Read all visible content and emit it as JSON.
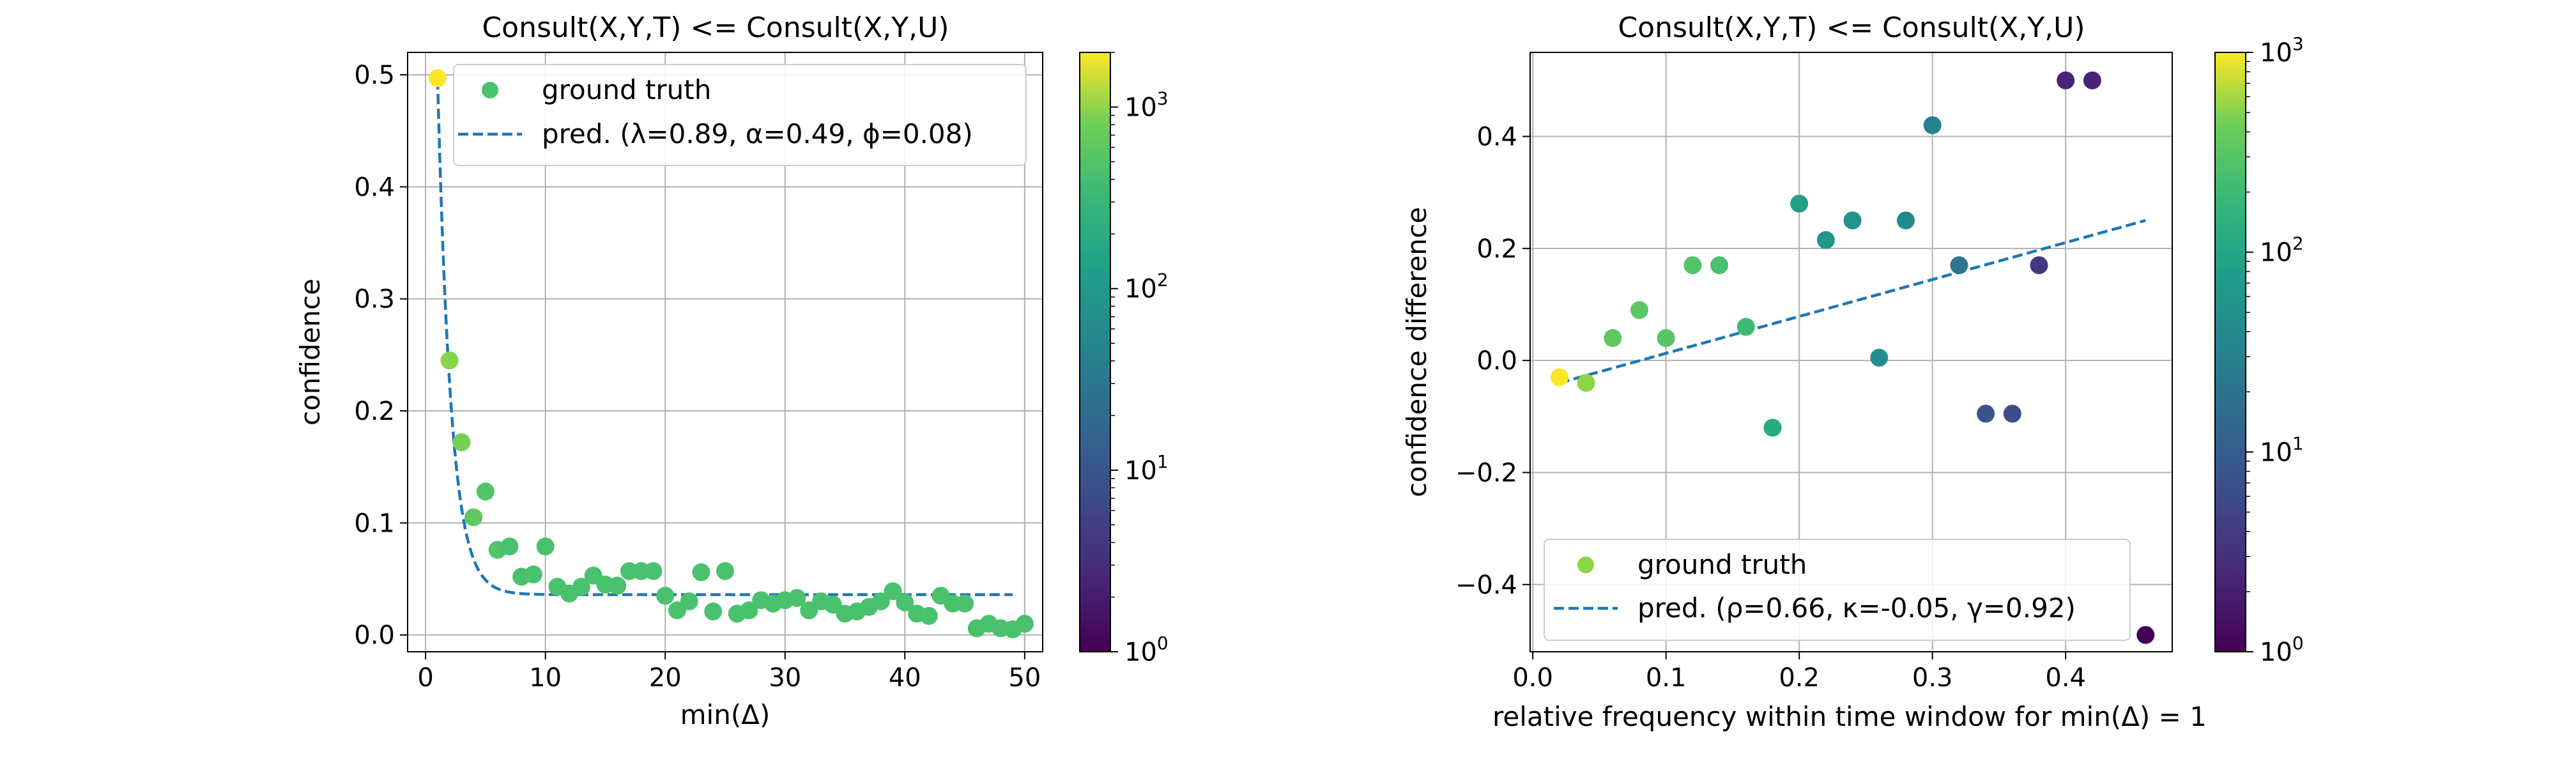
{
  "chart_data": [
    {
      "type": "scatter",
      "title": "Consult(X,Y,T) <=  Consult(X,Y,U)",
      "xlabel": "min(Δ)",
      "ylabel": "confidence",
      "xlim": [
        -1.5,
        51.5
      ],
      "ylim": [
        -0.015,
        0.52
      ],
      "xticks": [
        0,
        10,
        20,
        30,
        40,
        50
      ],
      "xtick_labels": [
        "0",
        "10",
        "20",
        "30",
        "40",
        "50"
      ],
      "yticks": [
        0.0,
        0.1,
        0.2,
        0.3,
        0.4,
        0.5
      ],
      "ytick_labels": [
        "0.0",
        "0.1",
        "0.2",
        "0.3",
        "0.4",
        "0.5"
      ],
      "grid": true,
      "legend_position": "top-right",
      "legend": [
        "ground truth",
        "pred. (λ=0.89, α=0.49, ϕ=0.08)"
      ],
      "series": [
        {
          "name": "ground truth",
          "kind": "scatter",
          "points": [
            {
              "x": 1,
              "y": 0.497,
              "c": 2000
            },
            {
              "x": 2,
              "y": 0.245,
              "c": 500
            },
            {
              "x": 3,
              "y": 0.172,
              "c": 400
            },
            {
              "x": 4,
              "y": 0.105,
              "c": 300
            },
            {
              "x": 5,
              "y": 0.128,
              "c": 250
            },
            {
              "x": 6,
              "y": 0.076,
              "c": 250
            },
            {
              "x": 7,
              "y": 0.079,
              "c": 220
            },
            {
              "x": 8,
              "y": 0.052,
              "c": 220
            },
            {
              "x": 9,
              "y": 0.054,
              "c": 220
            },
            {
              "x": 10,
              "y": 0.079,
              "c": 220
            },
            {
              "x": 11,
              "y": 0.043,
              "c": 220
            },
            {
              "x": 12,
              "y": 0.037,
              "c": 220
            },
            {
              "x": 13,
              "y": 0.043,
              "c": 220
            },
            {
              "x": 14,
              "y": 0.053,
              "c": 220
            },
            {
              "x": 15,
              "y": 0.045,
              "c": 220
            },
            {
              "x": 16,
              "y": 0.044,
              "c": 220
            },
            {
              "x": 17,
              "y": 0.057,
              "c": 220
            },
            {
              "x": 18,
              "y": 0.057,
              "c": 220
            },
            {
              "x": 19,
              "y": 0.057,
              "c": 220
            },
            {
              "x": 20,
              "y": 0.035,
              "c": 220
            },
            {
              "x": 21,
              "y": 0.022,
              "c": 220
            },
            {
              "x": 22,
              "y": 0.03,
              "c": 220
            },
            {
              "x": 23,
              "y": 0.056,
              "c": 220
            },
            {
              "x": 24,
              "y": 0.021,
              "c": 220
            },
            {
              "x": 25,
              "y": 0.057,
              "c": 220
            },
            {
              "x": 26,
              "y": 0.019,
              "c": 220
            },
            {
              "x": 27,
              "y": 0.022,
              "c": 220
            },
            {
              "x": 28,
              "y": 0.031,
              "c": 220
            },
            {
              "x": 29,
              "y": 0.028,
              "c": 220
            },
            {
              "x": 30,
              "y": 0.031,
              "c": 220
            },
            {
              "x": 31,
              "y": 0.033,
              "c": 220
            },
            {
              "x": 32,
              "y": 0.022,
              "c": 220
            },
            {
              "x": 33,
              "y": 0.03,
              "c": 220
            },
            {
              "x": 34,
              "y": 0.027,
              "c": 220
            },
            {
              "x": 35,
              "y": 0.019,
              "c": 220
            },
            {
              "x": 36,
              "y": 0.021,
              "c": 220
            },
            {
              "x": 37,
              "y": 0.025,
              "c": 220
            },
            {
              "x": 38,
              "y": 0.03,
              "c": 220
            },
            {
              "x": 39,
              "y": 0.039,
              "c": 220
            },
            {
              "x": 40,
              "y": 0.029,
              "c": 220
            },
            {
              "x": 41,
              "y": 0.019,
              "c": 220
            },
            {
              "x": 42,
              "y": 0.017,
              "c": 220
            },
            {
              "x": 43,
              "y": 0.035,
              "c": 220
            },
            {
              "x": 44,
              "y": 0.028,
              "c": 220
            },
            {
              "x": 45,
              "y": 0.028,
              "c": 220
            },
            {
              "x": 46,
              "y": 0.006,
              "c": 220
            },
            {
              "x": 47,
              "y": 0.01,
              "c": 220
            },
            {
              "x": 48,
              "y": 0.006,
              "c": 220
            },
            {
              "x": 49,
              "y": 0.005,
              "c": 220
            },
            {
              "x": 50,
              "y": 0.01,
              "c": 220
            }
          ]
        },
        {
          "name": "pred. (λ=0.89, α=0.49, ϕ=0.08)",
          "kind": "dashed-line",
          "model": {
            "a": 0.46,
            "rate": 0.89,
            "floor": 0.036
          },
          "x_range": [
            1,
            49
          ]
        }
      ],
      "colorbar": {
        "scale": "log",
        "min": 1,
        "max": 2000,
        "ticks": [
          1,
          10,
          100,
          1000
        ],
        "tick_bases": [
          "10",
          "10",
          "10",
          "10"
        ],
        "tick_exps": [
          "0",
          "1",
          "2",
          "3"
        ]
      }
    },
    {
      "type": "scatter",
      "title": "Consult(X,Y,T) <=  Consult(X,Y,U)",
      "xlabel": "relative frequency within time window for min(Δ) = 1",
      "ylabel": "confidence difference",
      "xlim": [
        -0.002,
        0.48
      ],
      "ylim": [
        -0.52,
        0.55
      ],
      "xticks": [
        0.0,
        0.1,
        0.2,
        0.3,
        0.4
      ],
      "xtick_labels": [
        "0.0",
        "0.1",
        "0.2",
        "0.3",
        "0.4"
      ],
      "yticks": [
        -0.4,
        -0.2,
        0.0,
        0.2,
        0.4
      ],
      "ytick_labels": [
        "−0.4",
        "−0.2",
        "0.0",
        "0.2",
        "0.4"
      ],
      "grid": true,
      "legend_position": "bottom-left",
      "legend": [
        "ground truth",
        "pred. (ρ=0.66, κ=-0.05, γ=0.92)"
      ],
      "series": [
        {
          "name": "ground truth",
          "kind": "scatter",
          "points": [
            {
              "x": 0.02,
              "y": -0.03,
              "c": 1000
            },
            {
              "x": 0.04,
              "y": -0.04,
              "c": 300
            },
            {
              "x": 0.06,
              "y": 0.04,
              "c": 180
            },
            {
              "x": 0.08,
              "y": 0.09,
              "c": 170
            },
            {
              "x": 0.1,
              "y": 0.04,
              "c": 160
            },
            {
              "x": 0.12,
              "y": 0.17,
              "c": 150
            },
            {
              "x": 0.14,
              "y": 0.17,
              "c": 130
            },
            {
              "x": 0.16,
              "y": 0.06,
              "c": 110
            },
            {
              "x": 0.18,
              "y": -0.12,
              "c": 70
            },
            {
              "x": 0.2,
              "y": 0.28,
              "c": 50
            },
            {
              "x": 0.22,
              "y": 0.215,
              "c": 40
            },
            {
              "x": 0.24,
              "y": 0.25,
              "c": 35
            },
            {
              "x": 0.26,
              "y": 0.005,
              "c": 30
            },
            {
              "x": 0.28,
              "y": 0.25,
              "c": 25
            },
            {
              "x": 0.3,
              "y": 0.42,
              "c": 20
            },
            {
              "x": 0.32,
              "y": 0.17,
              "c": 15
            },
            {
              "x": 0.34,
              "y": -0.095,
              "c": 6
            },
            {
              "x": 0.36,
              "y": -0.095,
              "c": 5
            },
            {
              "x": 0.38,
              "y": 0.17,
              "c": 3
            },
            {
              "x": 0.4,
              "y": 0.5,
              "c": 2
            },
            {
              "x": 0.42,
              "y": 0.5,
              "c": 2
            },
            {
              "x": 0.46,
              "y": -0.49,
              "c": 1
            }
          ]
        },
        {
          "name": "pred. (ρ=0.66, κ=-0.05, γ=0.92)",
          "kind": "dashed-line",
          "points": [
            {
              "x": 0.02,
              "y": -0.04
            },
            {
              "x": 0.46,
              "y": 0.25
            }
          ]
        }
      ],
      "colorbar": {
        "scale": "log",
        "min": 1,
        "max": 1000,
        "ticks": [
          1,
          10,
          100,
          1000
        ],
        "tick_bases": [
          "10",
          "10",
          "10",
          "10"
        ],
        "tick_exps": [
          "0",
          "1",
          "2",
          "3"
        ]
      }
    }
  ],
  "colors": {
    "line": "#1f77b4",
    "grid": "#b0b0b0",
    "axis": "#000000"
  }
}
